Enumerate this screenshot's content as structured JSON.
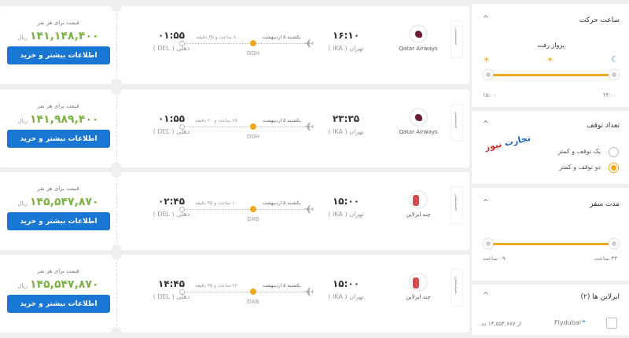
{
  "flights": [
    {
      "price_label": "قیمت برای هر نفر",
      "price": "۱۴۱,۱۴۸,۴۰۰",
      "currency": "ریال",
      "buy": "اطلاعات بیشتر و خرید",
      "arr_time": "۰۱:۵۵",
      "arr_city": "دهلی ( DEL )",
      "duration": "۸ ساعت و ۴۵ دقیقه",
      "date": "یکشنبه ۵ اردیبهشت",
      "stop": "DOH",
      "dep_time": "۱۶:۱۰",
      "dep_city": "تهران ( IKA )",
      "airline": "Qatar Airways",
      "logo": "qatar",
      "tab": "سیستمی"
    },
    {
      "price_label": "قیمت برای هر نفر",
      "price": "۱۴۱,۹۸۹,۴۰۰",
      "currency": "ریال",
      "buy": "اطلاعات بیشتر و خرید",
      "arr_time": "۰۱:۵۵",
      "arr_city": "دهلی ( DEL )",
      "duration": "۲۵ ساعت و ۲۰ دقیقه",
      "date": "یکشنبه ۵ اردیبهشت",
      "stop": "DOH",
      "dep_time": "۲۳:۳۵",
      "dep_city": "تهران ( IKA )",
      "airline": "Qatar Airways",
      "logo": "qatar",
      "tab": "سیستمی"
    },
    {
      "price_label": "قیمت برای هر نفر",
      "price": "۱۴۵,۵۴۷,۸۷۰",
      "currency": "ریال",
      "buy": "اطلاعات بیشتر و خرید",
      "arr_time": "۰۲:۴۵",
      "arr_city": "دهلی ( DEL )",
      "duration": "۱۰ ساعت و ۴۵ دقیقه",
      "date": "یکشنبه ۵ اردیبهشت",
      "stop": "DXB",
      "dep_time": "۱۵:۰۰",
      "dep_city": "تهران ( IKA )",
      "airline": "چند ایرلاین",
      "logo": "multi",
      "tab": "سیستمی"
    },
    {
      "price_label": "قیمت برای هر نفر",
      "price": "۱۴۵,۵۴۷,۸۷۰",
      "currency": "ریال",
      "buy": "اطلاعات بیشتر و خرید",
      "arr_time": "۱۴:۴۵",
      "arr_city": "دهلی ( DEL )",
      "duration": "۲۳ ساعت و ۴۵ دقیقه",
      "date": "یکشنبه ۵ اردیبهشت",
      "stop": "DXB",
      "dep_time": "۱۵:۰۰",
      "dep_city": "تهران ( IKA )",
      "airline": "چند ایرلاین",
      "logo": "multi",
      "tab": "سیستمی"
    }
  ],
  "sidebar": {
    "departure": {
      "title": "ساعت حرکت",
      "subtitle": "پرواز رفت",
      "min": "۱۵:۰۰",
      "max": "۲۴:۰۰"
    },
    "stops": {
      "title": "تعداد توقف",
      "options": [
        {
          "label": "یک توقف و کمتر",
          "selected": false
        },
        {
          "label": "دو توقف و کمتر",
          "selected": true
        }
      ],
      "watermark": "تجارت نیوز"
    },
    "duration": {
      "title": "مدت سفر",
      "min": "۰۹ ساعت",
      "max": "۴۳ ساعت"
    },
    "airlines": {
      "title": "ایرلاین ها (۲)",
      "items": [
        {
          "name": "Flydubai",
          "price": "از ۱۴,۵۵۴,۷۸۷ ت",
          "checked": false
        }
      ]
    }
  },
  "colors": {
    "accent": "#f0a81c",
    "button": "#1976d2",
    "price": "#7cb342"
  }
}
